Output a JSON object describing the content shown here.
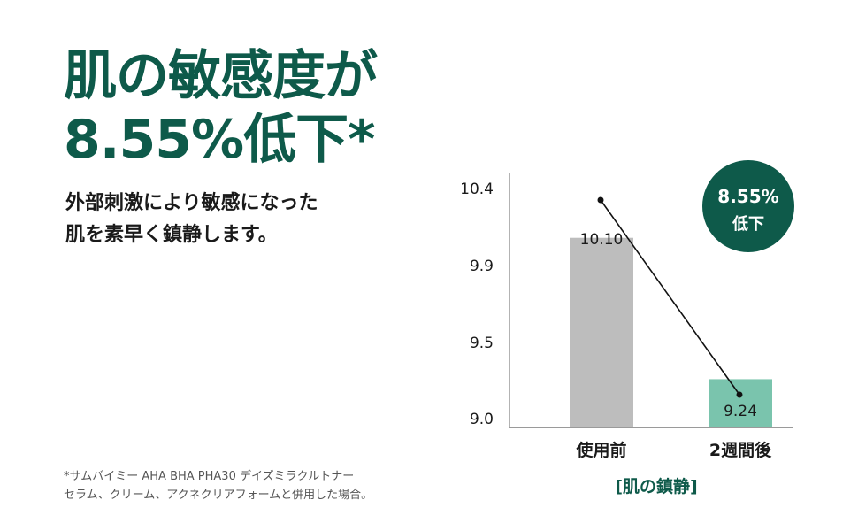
{
  "headline": {
    "line1": "肌の敏感度が",
    "line2": "8.55%低下*"
  },
  "subtext": {
    "line1": "外部刺激により敏感になった",
    "line2": "肌を素早く鎮静します。"
  },
  "footnote": {
    "line1": "*サムバイミー AHA BHA PHA30 デイズミラクルトナー",
    "line2": "セラム、クリーム、アクネクリアフォームと併用した場合。"
  },
  "badge": {
    "line1": "8.55%",
    "line2": "低下"
  },
  "colors": {
    "brand": "#0e5a4a",
    "before_bar": "#bdbdbd",
    "after_bar": "#7ac4ad",
    "axis": "#9a9a9a",
    "line": "#111111"
  },
  "chart_data": {
    "type": "bar",
    "categories": [
      "使用前",
      "2週間後"
    ],
    "values": [
      10.1,
      9.24
    ],
    "data_labels": [
      "10.10",
      "9.24"
    ],
    "yticks": [
      "10.4",
      "9.9",
      "9.5",
      "9.0"
    ],
    "ylim": [
      9.0,
      10.4
    ],
    "xlabel": "[肌の鎮静]",
    "trend_line": true
  }
}
